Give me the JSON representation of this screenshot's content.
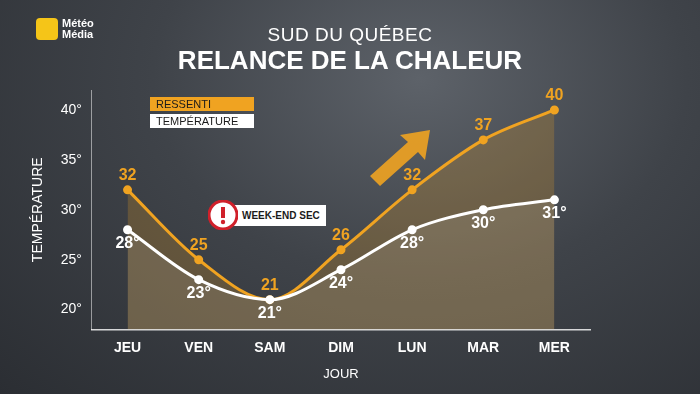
{
  "chart_data": {
    "type": "line",
    "logo_text": [
      "Météo",
      "Média"
    ],
    "subtitle": "SUD DU QUÉBEC",
    "title": "RELANCE DE LA CHALEUR",
    "x_label": "JOUR",
    "y_label": "TEMPÉRATURE",
    "categories": [
      "JEU",
      "VEN",
      "SAM",
      "DIM",
      "LUN",
      "MAR",
      "MER"
    ],
    "series": [
      {
        "name": "RESSENTI",
        "color": "#f0a321",
        "values": [
          32,
          25,
          21,
          26,
          32,
          37,
          40
        ],
        "marker": "circle",
        "line_style": "solid"
      },
      {
        "name": "TEMPÉRATURE",
        "color": "#ffffff",
        "values": [
          28,
          23,
          21,
          24,
          28,
          30,
          31
        ],
        "value_labels": [
          "28°",
          "23°",
          "21°",
          "24°",
          "28°",
          "30°",
          "31°"
        ],
        "marker": "circle",
        "line_style": "solid"
      }
    ],
    "annotations": [
      {
        "text": "WEEK-END SEC"
      }
    ],
    "ylim": [
      18,
      42
    ],
    "yticks": [
      {
        "value": 20,
        "label": "20°"
      },
      {
        "value": 25,
        "label": "25°"
      },
      {
        "value": 30,
        "label": "30°"
      },
      {
        "value": 35,
        "label": "35°"
      },
      {
        "value": 40,
        "label": "40°"
      }
    ],
    "grid": false,
    "legend": "top-left",
    "data_labels": true
  }
}
